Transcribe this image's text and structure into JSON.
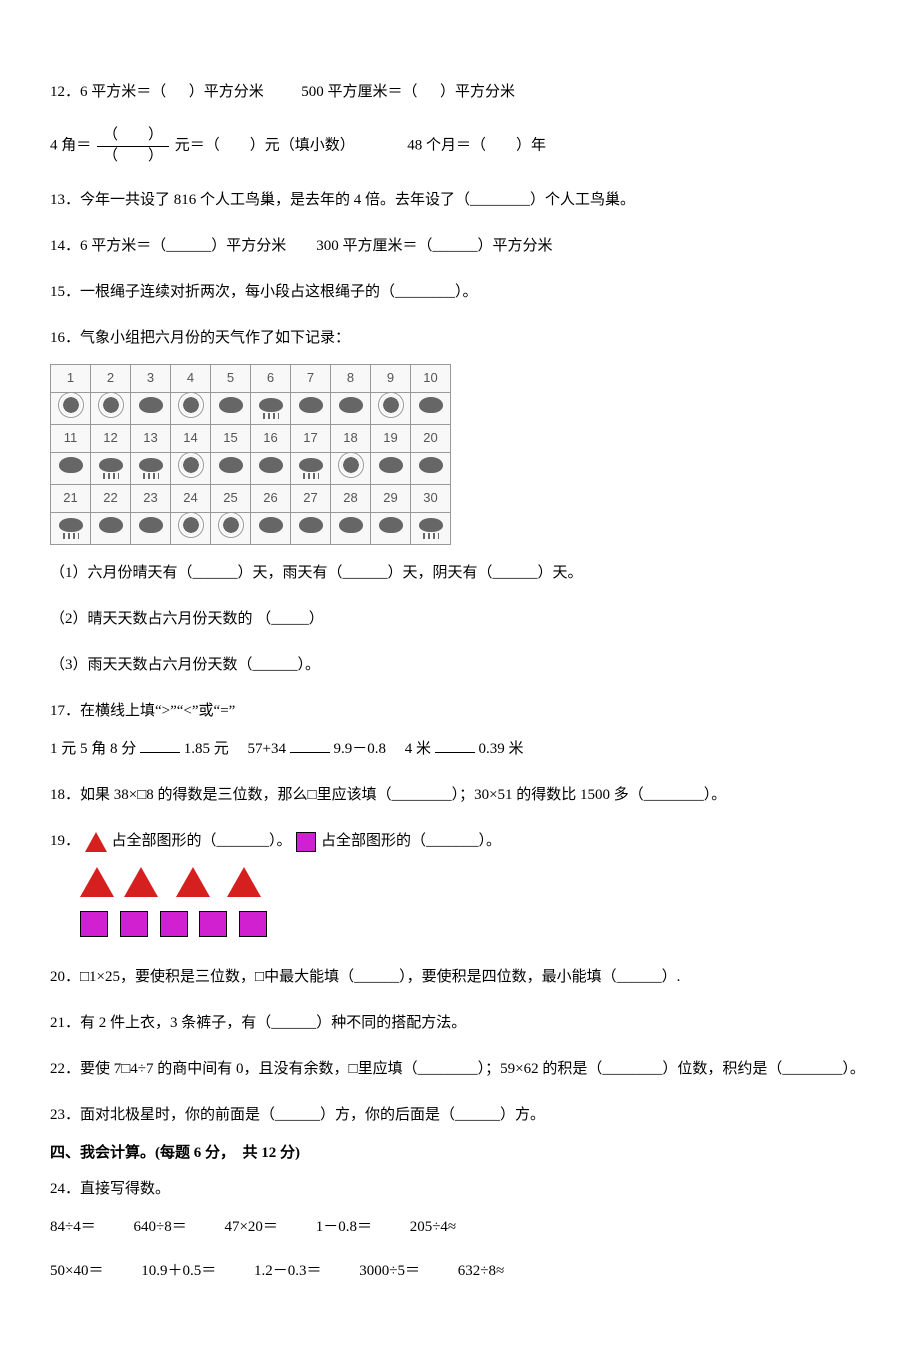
{
  "q12": {
    "part1_pre": "12．6 平方米＝（",
    "part1_post": "）平方分米",
    "part2_pre": "500 平方厘米＝（",
    "part2_post": "）平方分米"
  },
  "q12b": {
    "pre": "4 角＝",
    "frac_num": "（　　）",
    "frac_den": "（　　）",
    "mid": "元＝（　　）元（填小数）",
    "part2": "48 个月＝（　　）年"
  },
  "q13": "13．今年一共设了 816 个人工鸟巢，是去年的 4 倍。去年设了（________）个人工鸟巢。",
  "q14": "14．6 平方米＝（______）平方分米　　300 平方厘米＝（______）平方分米",
  "q15": "15．一根绳子连续对折两次，每小段占这根绳子的（________）。",
  "q16_intro": "16．气象小组把六月份的天气作了如下记录：",
  "weather": {
    "days": [
      [
        1,
        2,
        3,
        4,
        5,
        6,
        7,
        8,
        9,
        10
      ],
      [
        11,
        12,
        13,
        14,
        15,
        16,
        17,
        18,
        19,
        20
      ],
      [
        21,
        22,
        23,
        24,
        25,
        26,
        27,
        28,
        29,
        30
      ]
    ],
    "icons": [
      [
        "sunny",
        "sunny",
        "cloudy",
        "sunny",
        "cloudy",
        "rainy",
        "cloudy",
        "cloudy",
        "sunny",
        "cloudy"
      ],
      [
        "cloudy",
        "rainy",
        "rainy",
        "sunny",
        "cloudy",
        "cloudy",
        "rainy",
        "sunny",
        "cloudy",
        "cloudy"
      ],
      [
        "rainy",
        "cloudy",
        "cloudy",
        "sunny",
        "sunny",
        "cloudy",
        "cloudy",
        "cloudy",
        "cloudy",
        "rainy"
      ]
    ]
  },
  "q16_1": "（1）六月份晴天有（______）天，雨天有（______）天，阴天有（______）天。",
  "q16_2": "（2）晴天天数占六月份天数的 （_____）",
  "q16_3": "（3）雨天天数占六月份天数（______）。",
  "q17_intro": "17．在横线上填“>”“<”或“=”",
  "q17_body": {
    "a": "1 元 5 角 8 分",
    "b": "1.85 元",
    "c": "57+34",
    "d": "9.9－0.8",
    "e": "4 米",
    "f": "0.39 米"
  },
  "q18": "18．如果 38×□8 的得数是三位数，那么□里应该填（________）；30×51 的得数比 1500 多（________）。",
  "q19_pre": "19．",
  "q19_mid1": "占全部图形的（_______）。",
  "q19_mid2": "占全部图形的（_______）。",
  "q20": "20．□1×25，要使积是三位数，□中最大能填（______），要使积是四位数，最小能填（______）.",
  "q21": "21．有 2 件上衣，3 条裤子，有（______）种不同的搭配方法。",
  "q22": "22．要使 7□4÷7 的商中间有 0，且没有余数，□里应填（________）；59×62 的积是（________）位数，积约是（________）。",
  "q23": "23．面对北极星时，你的前面是（______）方，你的后面是（______）方。",
  "section4": "四、我会计算。(每题 6 分，　共 12 分)",
  "q24_intro": "24．直接写得数。",
  "q24_row1": {
    "a": "84÷4＝",
    "b": "640÷8＝",
    "c": "47×20＝",
    "d": "1－0.8＝",
    "e": "205÷4≈"
  },
  "q24_row2": {
    "a": "50×40＝",
    "b": "10.9＋0.5＝",
    "c": "1.2－0.3＝",
    "d": "3000÷5＝",
    "e": "632÷8≈"
  }
}
